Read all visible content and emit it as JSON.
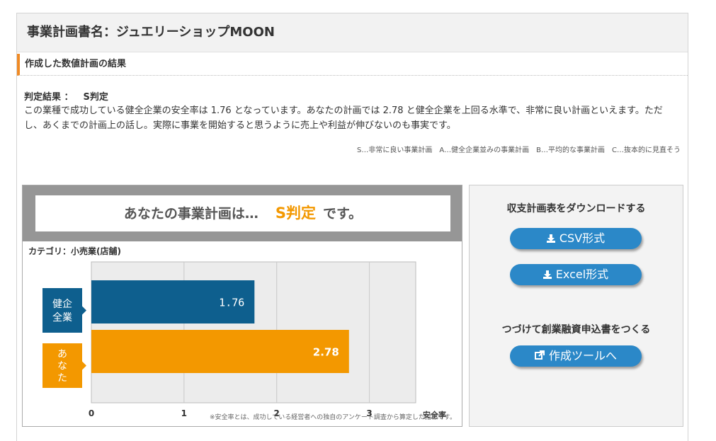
{
  "header": {
    "title": "事業計画書名：ジュエリーショップMOON"
  },
  "section": {
    "title": "作成した数値計画の結果"
  },
  "verdict": {
    "label": "判定結果 ：",
    "grade": "S判定",
    "description": "この業種で成功している健全企業の安全率は 1.76 となっています。あなたの計画では 2.78 と健全企業を上回る水準で、非常に良い計画といえます。ただし、あくまでの計画上の話し。実際に事業を開始すると思うように売上や利益が伸びないのも事実です。",
    "legend": "S…非常に良い事業計画　A…健全企業並みの事業計画　B…平均的な事業計画　C…抜本的に見直そう"
  },
  "banner": {
    "prefix": "あなたの事業計画は…",
    "grade": "S判定",
    "suffix": "です。"
  },
  "category": "カテゴリ：小売業(店舗)",
  "chart_data": {
    "type": "bar",
    "orientation": "horizontal",
    "categories": [
      "健企\n全業",
      "あ\nな\nた"
    ],
    "values": [
      1.76,
      2.78
    ],
    "value_labels": [
      "1.76",
      "2.78"
    ],
    "colors": [
      "#0e5f8e",
      "#f39800"
    ],
    "xlim": [
      0,
      3.5
    ],
    "xticks": [
      "0",
      "1",
      "2",
      "3"
    ],
    "xlabel": "安全率",
    "grid": true,
    "footnote": "※安全率とは、成功している経営者への独自のアンケート調査から算定した指標です。"
  },
  "sidebar": {
    "download_heading": "収支計画表をダウンロードする",
    "csv_button": "CSV形式",
    "excel_button": "Excel形式",
    "continue_heading": "つづけて創業融資申込書をつくる",
    "tool_button": "作成ツールへ"
  }
}
